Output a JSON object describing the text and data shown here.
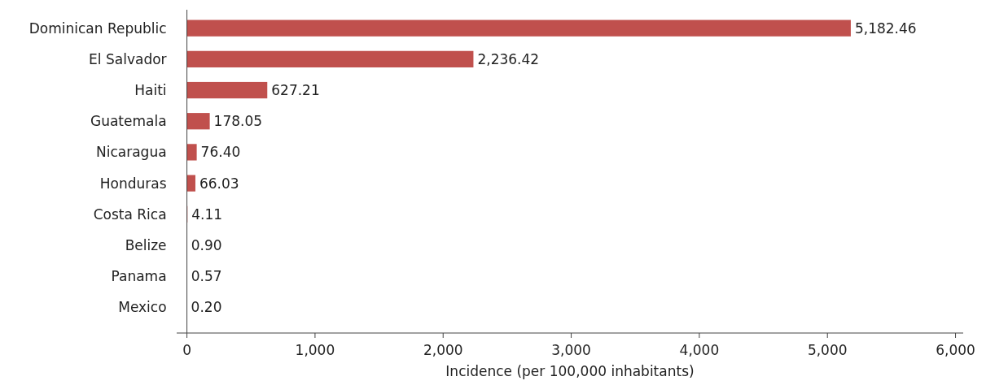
{
  "chart_data": {
    "type": "bar",
    "orientation": "horizontal",
    "xlabel": "Incidence (per 100,000 inhabitants)",
    "categories": [
      "Dominican Republic",
      "El Salvador",
      "Haiti",
      "Guatemala",
      "Nicaragua",
      "Honduras",
      "Costa Rica",
      "Belize",
      "Panama",
      "Mexico"
    ],
    "values": [
      5182.46,
      2236.42,
      627.21,
      178.05,
      76.4,
      66.03,
      4.11,
      0.9,
      0.57,
      0.2
    ],
    "value_labels": [
      "5,182.46",
      "2,236.42",
      "627.21",
      "178.05",
      "76.40",
      "66.03",
      "4.11",
      "0.90",
      "0.57",
      "0.20"
    ],
    "color": "#c0504d",
    "xlim": [
      -80,
      6060
    ],
    "xticks": [
      {
        "value": 0,
        "label": "0"
      },
      {
        "value": 1000,
        "label": "1,000"
      },
      {
        "value": 2000,
        "label": "2,000"
      },
      {
        "value": 3000,
        "label": "3,000"
      },
      {
        "value": 4000,
        "label": "4,000"
      },
      {
        "value": 5000,
        "label": "5,000"
      },
      {
        "value": 6000,
        "label": "6,000"
      }
    ],
    "grid": false
  }
}
